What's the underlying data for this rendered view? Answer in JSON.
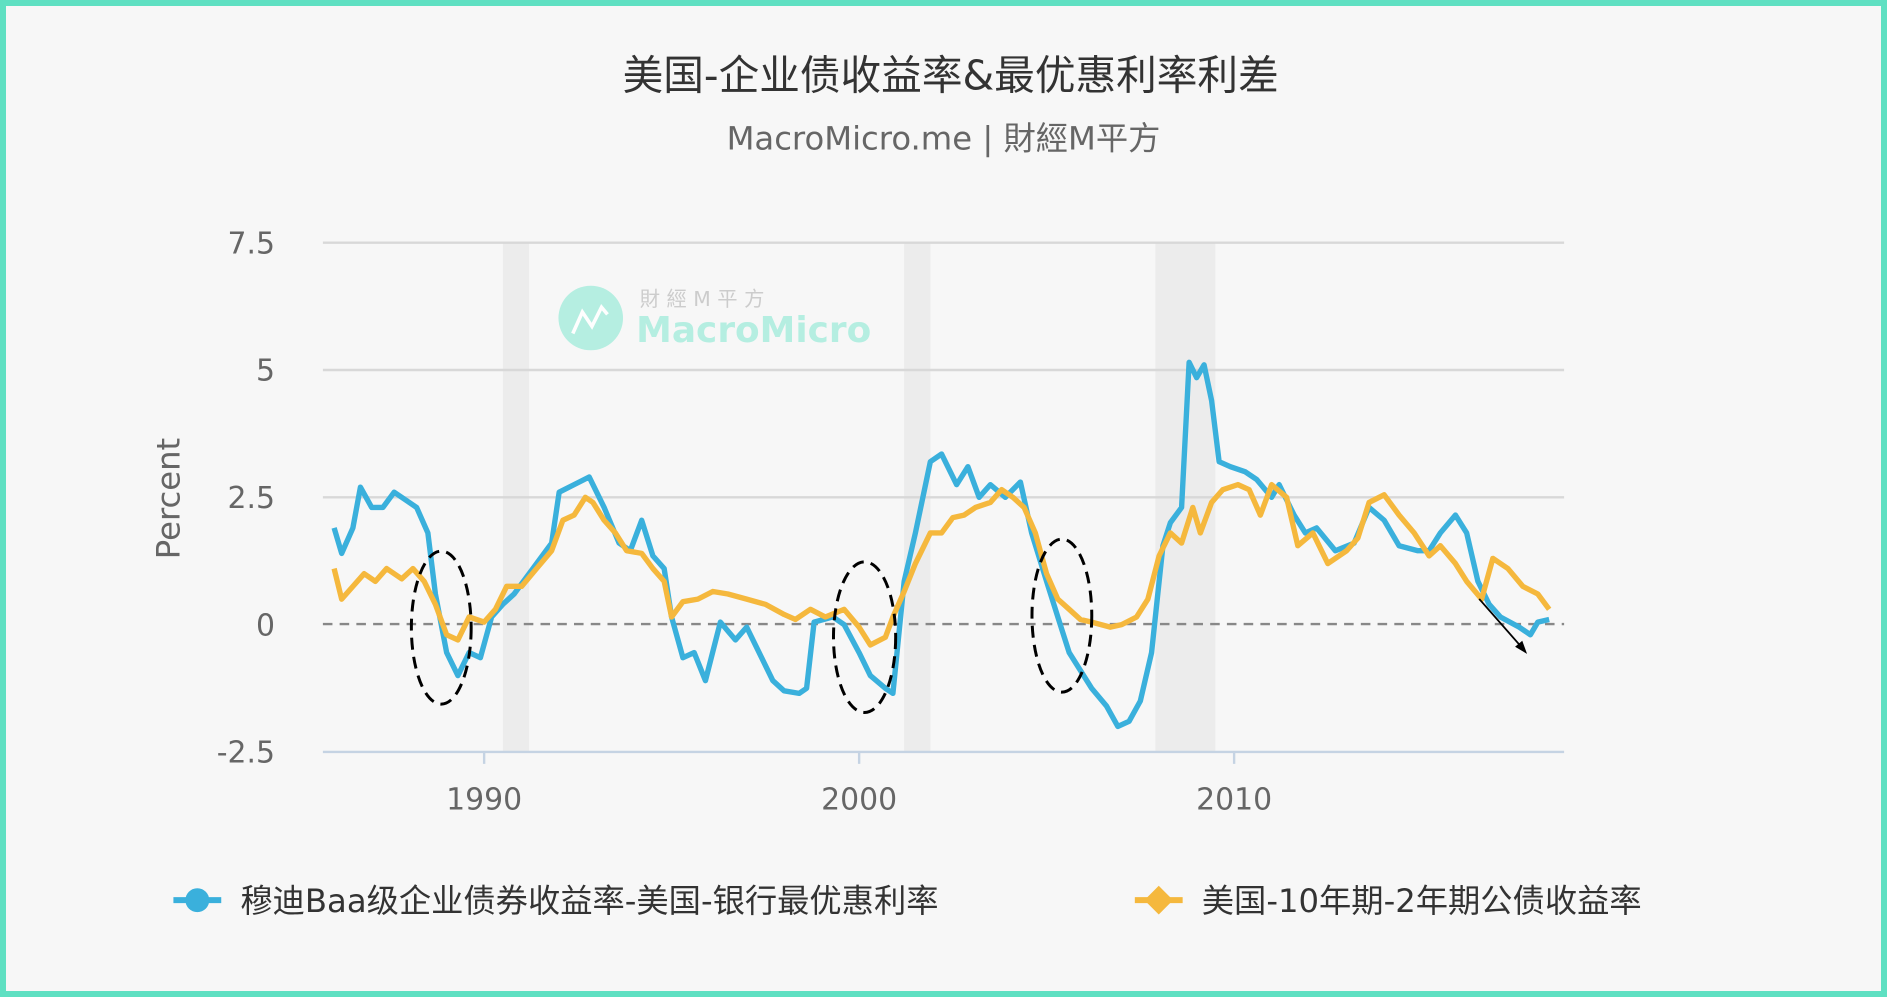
{
  "title": "美国-企业债收益率&最优惠利率利差",
  "subtitle": "MacroMicro.me | 財經M平方",
  "watermark": {
    "cn": "財 經 M 平 方",
    "en": "MacroMicro"
  },
  "colors": {
    "frame": "#5fe0c2",
    "series1": "#3ab0dc",
    "series2": "#f5b83d",
    "recession": "#ececec",
    "zero_line": "#888888"
  },
  "chart_data": {
    "type": "line",
    "title": "美国-企业债收益率&最优惠利率利差",
    "ylabel": "Percent",
    "xlabel": "",
    "xlim": [
      1985.7,
      2018.8
    ],
    "ylim": [
      -2.5,
      7.5
    ],
    "yticks": [
      "7.5",
      "5",
      "2.5",
      "0",
      "-2.5"
    ],
    "ytick_values": [
      7.5,
      5,
      2.5,
      0,
      -2.5
    ],
    "xticks": [
      "1990",
      "2000",
      "2010"
    ],
    "xtick_values": [
      1990,
      2000,
      2010
    ],
    "grid": true,
    "legend_position": "bottom",
    "recessions": [
      [
        1990.5,
        1991.2
      ],
      [
        2001.2,
        2001.9
      ],
      [
        2007.9,
        2009.5
      ]
    ],
    "series": [
      {
        "name": "穆迪Baa级企业债券收益率-美国-银行最优惠利率",
        "marker": "circle",
        "points": [
          [
            1986.0,
            1.9
          ],
          [
            1986.2,
            1.4
          ],
          [
            1986.5,
            1.9
          ],
          [
            1986.7,
            2.7
          ],
          [
            1987.0,
            2.3
          ],
          [
            1987.3,
            2.3
          ],
          [
            1987.6,
            2.6
          ],
          [
            1987.9,
            2.45
          ],
          [
            1988.2,
            2.3
          ],
          [
            1988.5,
            1.8
          ],
          [
            1988.7,
            0.6
          ],
          [
            1989.0,
            -0.55
          ],
          [
            1989.3,
            -1.0
          ],
          [
            1989.6,
            -0.55
          ],
          [
            1989.9,
            -0.65
          ],
          [
            1990.2,
            0.15
          ],
          [
            1990.5,
            0.4
          ],
          [
            1990.8,
            0.6
          ],
          [
            1991.3,
            1.1
          ],
          [
            1991.8,
            1.6
          ],
          [
            1992.0,
            2.6
          ],
          [
            1992.4,
            2.75
          ],
          [
            1992.8,
            2.9
          ],
          [
            1993.2,
            2.3
          ],
          [
            1993.6,
            1.6
          ],
          [
            1993.9,
            1.45
          ],
          [
            1994.2,
            2.05
          ],
          [
            1994.5,
            1.35
          ],
          [
            1994.8,
            1.1
          ],
          [
            1995.0,
            0.15
          ],
          [
            1995.3,
            -0.65
          ],
          [
            1995.6,
            -0.55
          ],
          [
            1995.9,
            -1.1
          ],
          [
            1996.3,
            0.05
          ],
          [
            1996.7,
            -0.3
          ],
          [
            1997.0,
            -0.05
          ],
          [
            1997.4,
            -0.65
          ],
          [
            1997.7,
            -1.1
          ],
          [
            1998.0,
            -1.3
          ],
          [
            1998.4,
            -1.35
          ],
          [
            1998.6,
            -1.25
          ],
          [
            1998.8,
            0.05
          ],
          [
            1999.3,
            0.15
          ],
          [
            1999.6,
            0.0
          ],
          [
            2000.0,
            -0.55
          ],
          [
            2000.3,
            -1.0
          ],
          [
            2000.7,
            -1.25
          ],
          [
            2000.9,
            -1.35
          ],
          [
            2001.2,
            0.85
          ],
          [
            2001.5,
            1.8
          ],
          [
            2001.9,
            3.2
          ],
          [
            2002.2,
            3.35
          ],
          [
            2002.6,
            2.75
          ],
          [
            2002.9,
            3.1
          ],
          [
            2003.2,
            2.5
          ],
          [
            2003.5,
            2.75
          ],
          [
            2003.9,
            2.5
          ],
          [
            2004.3,
            2.8
          ],
          [
            2004.6,
            1.8
          ],
          [
            2005.0,
            0.85
          ],
          [
            2005.3,
            0.15
          ],
          [
            2005.6,
            -0.55
          ],
          [
            2005.9,
            -0.9
          ],
          [
            2006.2,
            -1.25
          ],
          [
            2006.6,
            -1.6
          ],
          [
            2006.9,
            -2.0
          ],
          [
            2007.2,
            -1.9
          ],
          [
            2007.5,
            -1.5
          ],
          [
            2007.8,
            -0.55
          ],
          [
            2008.1,
            1.55
          ],
          [
            2008.3,
            2.0
          ],
          [
            2008.6,
            2.3
          ],
          [
            2008.8,
            5.15
          ],
          [
            2009.0,
            4.85
          ],
          [
            2009.2,
            5.1
          ],
          [
            2009.4,
            4.4
          ],
          [
            2009.6,
            3.2
          ],
          [
            2009.9,
            3.1
          ],
          [
            2010.3,
            3.0
          ],
          [
            2010.6,
            2.85
          ],
          [
            2011.0,
            2.5
          ],
          [
            2011.2,
            2.75
          ],
          [
            2011.6,
            2.15
          ],
          [
            2011.9,
            1.8
          ],
          [
            2012.2,
            1.9
          ],
          [
            2012.7,
            1.45
          ],
          [
            2013.2,
            1.6
          ],
          [
            2013.6,
            2.3
          ],
          [
            2014.0,
            2.05
          ],
          [
            2014.4,
            1.55
          ],
          [
            2014.9,
            1.45
          ],
          [
            2015.2,
            1.45
          ],
          [
            2015.5,
            1.8
          ],
          [
            2015.9,
            2.15
          ],
          [
            2016.2,
            1.8
          ],
          [
            2016.5,
            0.85
          ],
          [
            2016.8,
            0.4
          ],
          [
            2017.1,
            0.15
          ],
          [
            2017.6,
            -0.05
          ],
          [
            2017.9,
            -0.2
          ],
          [
            2018.1,
            0.05
          ],
          [
            2018.4,
            0.1
          ]
        ]
      },
      {
        "name": "美国-10年期-2年期公债收益率",
        "marker": "diamond",
        "points": [
          [
            1986.0,
            1.1
          ],
          [
            1986.2,
            0.5
          ],
          [
            1986.5,
            0.75
          ],
          [
            1986.8,
            1.0
          ],
          [
            1987.1,
            0.85
          ],
          [
            1987.4,
            1.1
          ],
          [
            1987.8,
            0.9
          ],
          [
            1988.1,
            1.1
          ],
          [
            1988.4,
            0.85
          ],
          [
            1988.7,
            0.4
          ],
          [
            1989.0,
            -0.2
          ],
          [
            1989.3,
            -0.3
          ],
          [
            1989.6,
            0.15
          ],
          [
            1990.0,
            0.05
          ],
          [
            1990.3,
            0.3
          ],
          [
            1990.6,
            0.75
          ],
          [
            1991.0,
            0.75
          ],
          [
            1991.4,
            1.1
          ],
          [
            1991.8,
            1.45
          ],
          [
            1992.1,
            2.05
          ],
          [
            1992.4,
            2.15
          ],
          [
            1992.7,
            2.5
          ],
          [
            1992.9,
            2.4
          ],
          [
            1993.2,
            2.05
          ],
          [
            1993.5,
            1.8
          ],
          [
            1993.8,
            1.45
          ],
          [
            1994.2,
            1.4
          ],
          [
            1994.5,
            1.1
          ],
          [
            1994.8,
            0.85
          ],
          [
            1995.0,
            0.15
          ],
          [
            1995.3,
            0.45
          ],
          [
            1995.7,
            0.5
          ],
          [
            1996.1,
            0.65
          ],
          [
            1996.5,
            0.6
          ],
          [
            1997.0,
            0.5
          ],
          [
            1997.5,
            0.4
          ],
          [
            1998.0,
            0.2
          ],
          [
            1998.3,
            0.1
          ],
          [
            1998.7,
            0.3
          ],
          [
            1999.1,
            0.15
          ],
          [
            1999.6,
            0.3
          ],
          [
            2000.0,
            -0.05
          ],
          [
            2000.3,
            -0.4
          ],
          [
            2000.7,
            -0.25
          ],
          [
            2000.9,
            0.15
          ],
          [
            2001.2,
            0.65
          ],
          [
            2001.5,
            1.2
          ],
          [
            2001.9,
            1.8
          ],
          [
            2002.2,
            1.8
          ],
          [
            2002.5,
            2.1
          ],
          [
            2002.8,
            2.15
          ],
          [
            2003.1,
            2.3
          ],
          [
            2003.5,
            2.4
          ],
          [
            2003.8,
            2.65
          ],
          [
            2004.1,
            2.5
          ],
          [
            2004.4,
            2.3
          ],
          [
            2004.7,
            1.8
          ],
          [
            2005.0,
            1.0
          ],
          [
            2005.3,
            0.5
          ],
          [
            2005.6,
            0.3
          ],
          [
            2005.9,
            0.1
          ],
          [
            2006.2,
            0.05
          ],
          [
            2006.7,
            -0.05
          ],
          [
            2007.0,
            0.0
          ],
          [
            2007.4,
            0.15
          ],
          [
            2007.7,
            0.5
          ],
          [
            2008.0,
            1.35
          ],
          [
            2008.3,
            1.8
          ],
          [
            2008.6,
            1.6
          ],
          [
            2008.9,
            2.3
          ],
          [
            2009.1,
            1.8
          ],
          [
            2009.4,
            2.4
          ],
          [
            2009.7,
            2.65
          ],
          [
            2010.1,
            2.75
          ],
          [
            2010.4,
            2.65
          ],
          [
            2010.7,
            2.15
          ],
          [
            2011.0,
            2.75
          ],
          [
            2011.4,
            2.5
          ],
          [
            2011.7,
            1.55
          ],
          [
            2012.1,
            1.8
          ],
          [
            2012.5,
            1.2
          ],
          [
            2013.0,
            1.45
          ],
          [
            2013.3,
            1.7
          ],
          [
            2013.6,
            2.4
          ],
          [
            2014.0,
            2.55
          ],
          [
            2014.4,
            2.15
          ],
          [
            2014.8,
            1.8
          ],
          [
            2015.2,
            1.35
          ],
          [
            2015.5,
            1.55
          ],
          [
            2015.9,
            1.2
          ],
          [
            2016.2,
            0.85
          ],
          [
            2016.6,
            0.5
          ],
          [
            2016.9,
            1.3
          ],
          [
            2017.3,
            1.1
          ],
          [
            2017.7,
            0.75
          ],
          [
            2018.1,
            0.6
          ],
          [
            2018.4,
            0.3
          ]
        ]
      }
    ]
  }
}
